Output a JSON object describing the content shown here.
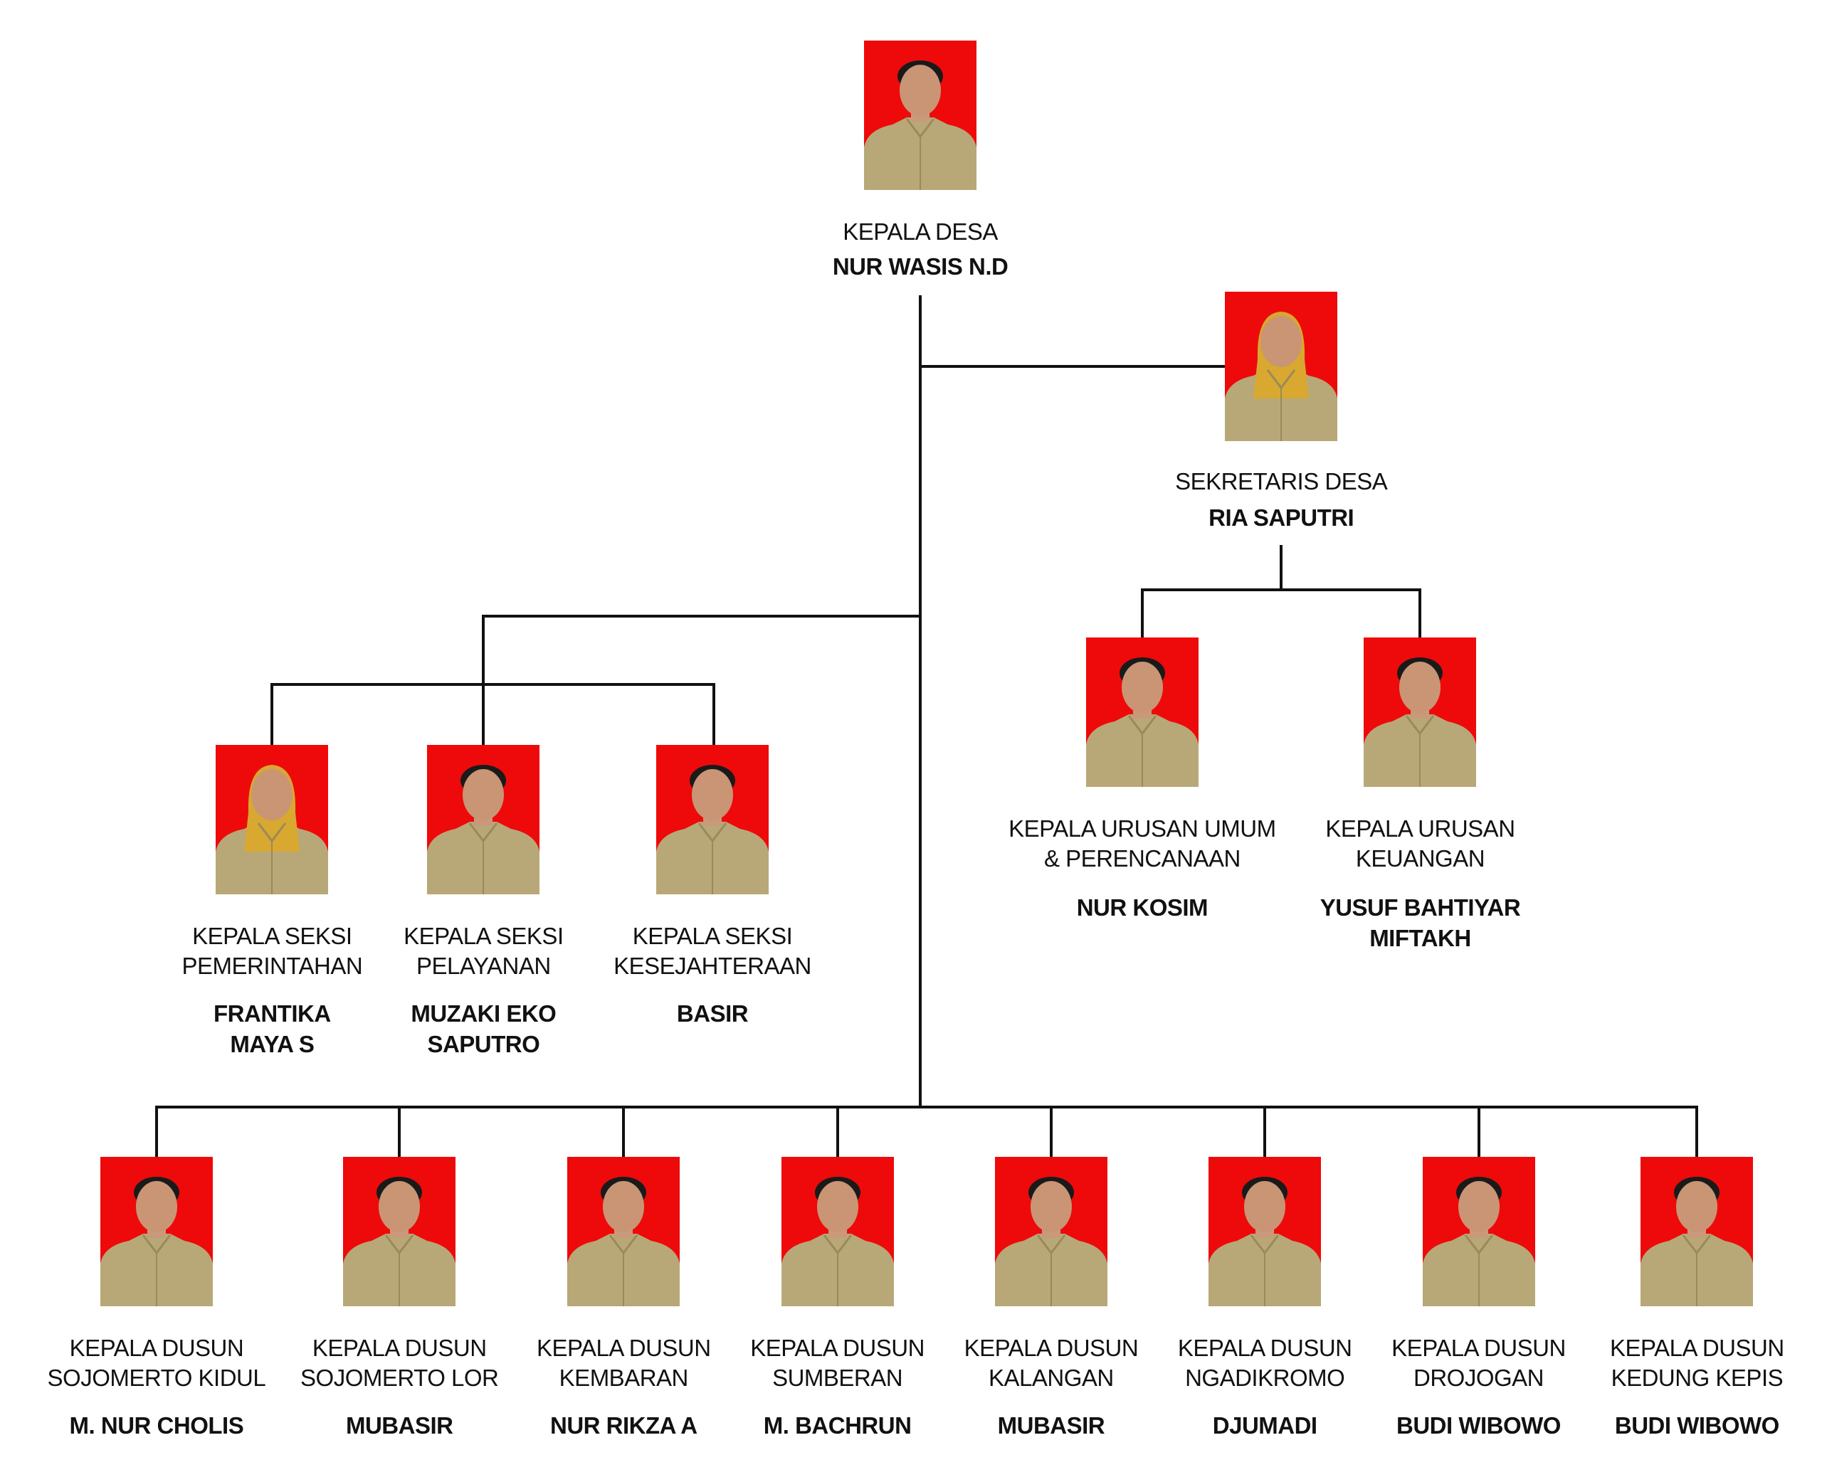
{
  "colors": {
    "photo_background": "#ee0a0a",
    "uniform": "#b8a878",
    "line": "#111111"
  },
  "nodes": [
    {
      "id": "kepala-desa",
      "title": [
        "KEPALA DESA"
      ],
      "name": [
        "NUR WASIS N.D"
      ]
    },
    {
      "id": "sekretaris-desa",
      "title": [
        "SEKRETARIS DESA"
      ],
      "name": [
        "RIA SAPUTRI"
      ]
    },
    {
      "id": "kaur-umum",
      "title": [
        "KEPALA URUSAN UMUM",
        "& PERENCANAAN"
      ],
      "name": [
        "NUR KOSIM"
      ]
    },
    {
      "id": "kaur-keuangan",
      "title": [
        "KEPALA URUSAN",
        "KEUANGAN"
      ],
      "name": [
        "YUSUF BAHTIYAR",
        "MIFTAKH"
      ]
    },
    {
      "id": "kasi-pemerintahan",
      "title": [
        "KEPALA SEKSI",
        "PEMERINTAHAN"
      ],
      "name": [
        "FRANTIKA",
        "MAYA S"
      ]
    },
    {
      "id": "kasi-pelayanan",
      "title": [
        "KEPALA SEKSI",
        "PELAYANAN"
      ],
      "name": [
        "MUZAKI EKO",
        "SAPUTRO"
      ]
    },
    {
      "id": "kasi-kesejahteraan",
      "title": [
        "KEPALA SEKSI",
        "KESEJAHTERAAN"
      ],
      "name": [
        "BASIR"
      ]
    },
    {
      "id": "kadus-sojomerto-kidul",
      "title": [
        "KEPALA DUSUN",
        "SOJOMERTO KIDUL"
      ],
      "name": [
        "M. NUR CHOLIS"
      ]
    },
    {
      "id": "kadus-sojomerto-lor",
      "title": [
        "KEPALA DUSUN",
        "SOJOMERTO LOR"
      ],
      "name": [
        "MUBASIR"
      ]
    },
    {
      "id": "kadus-kembaran",
      "title": [
        "KEPALA DUSUN",
        "KEMBARAN"
      ],
      "name": [
        "NUR RIKZA A"
      ]
    },
    {
      "id": "kadus-sumberan",
      "title": [
        "KEPALA DUSUN",
        "SUMBERAN"
      ],
      "name": [
        "M. BACHRUN"
      ]
    },
    {
      "id": "kadus-kalangan",
      "title": [
        "KEPALA DUSUN",
        "KALANGAN"
      ],
      "name": [
        "MUBASIR"
      ]
    },
    {
      "id": "kadus-ngadikromo",
      "title": [
        "KEPALA DUSUN",
        "NGADIKROMO"
      ],
      "name": [
        "DJUMADI"
      ]
    },
    {
      "id": "kadus-drojogan",
      "title": [
        "KEPALA DUSUN",
        "DROJOGAN"
      ],
      "name": [
        "BUDI WIBOWO"
      ]
    },
    {
      "id": "kadus-kedung-kepis",
      "title": [
        "KEPALA DUSUN",
        "KEDUNG KEPIS"
      ],
      "name": [
        "BUDI WIBOWO"
      ]
    }
  ]
}
